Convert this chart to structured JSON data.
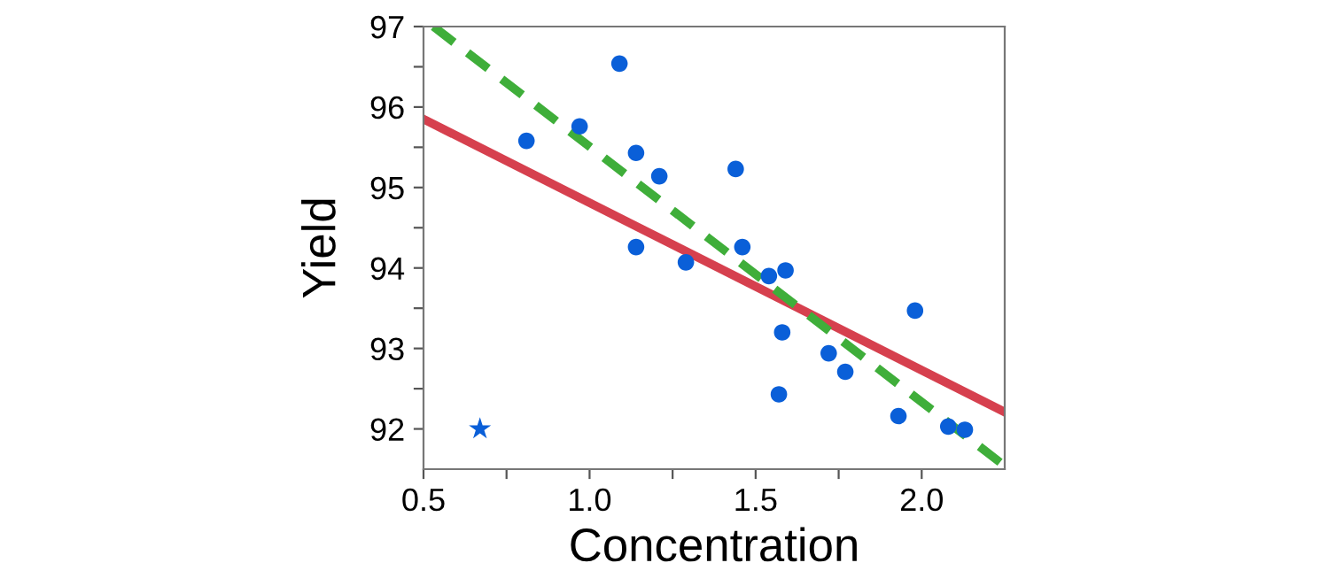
{
  "chart_data": {
    "type": "scatter",
    "xlabel": "Concentration",
    "ylabel": "Yield",
    "xlim": [
      0.5,
      2.25
    ],
    "ylim": [
      91.5,
      97
    ],
    "xticks": [
      {
        "value": 0.5,
        "label": "0.5"
      },
      {
        "value": 0.75,
        "label": null
      },
      {
        "value": 1.0,
        "label": "1.0"
      },
      {
        "value": 1.25,
        "label": null
      },
      {
        "value": 1.5,
        "label": "1.5"
      },
      {
        "value": 1.75,
        "label": null
      },
      {
        "value": 2.0,
        "label": "2.0"
      }
    ],
    "yticks": [
      92,
      {
        "value": 92.5,
        "label": null
      },
      93,
      {
        "value": 93.5,
        "label": null
      },
      94,
      {
        "value": 94.5,
        "label": null
      },
      95,
      {
        "value": 95.5,
        "label": null
      },
      96,
      {
        "value": 96.5,
        "label": null
      },
      97
    ],
    "grid": false,
    "legend": false,
    "series": [
      {
        "marker": "circle",
        "color": "#0a5fd8",
        "x": [
          0.81,
          0.97,
          1.09,
          1.14,
          1.21,
          1.14,
          1.29,
          1.44,
          1.46,
          1.54,
          1.59,
          1.58,
          1.57,
          1.72,
          1.77,
          1.98,
          1.93,
          2.08,
          2.13
        ],
        "values": [
          95.58,
          95.76,
          96.54,
          95.43,
          95.14,
          94.26,
          94.07,
          95.23,
          94.26,
          93.9,
          93.97,
          93.2,
          92.43,
          92.94,
          92.71,
          93.47,
          92.16,
          92.03,
          91.99
        ]
      },
      {
        "marker": "star",
        "color": "#0a5fd8",
        "x": [
          0.67
        ],
        "values": [
          92.0
        ]
      },
      {
        "type": "line",
        "line_style": "solid",
        "color": "#d6404e",
        "x": [
          0.5,
          2.25
        ],
        "values": [
          95.85,
          92.21
        ]
      },
      {
        "type": "line",
        "line_style": "dashed",
        "color": "#3fae3a",
        "x": [
          0.53,
          2.25
        ],
        "values": [
          97.0,
          91.54
        ]
      }
    ]
  }
}
